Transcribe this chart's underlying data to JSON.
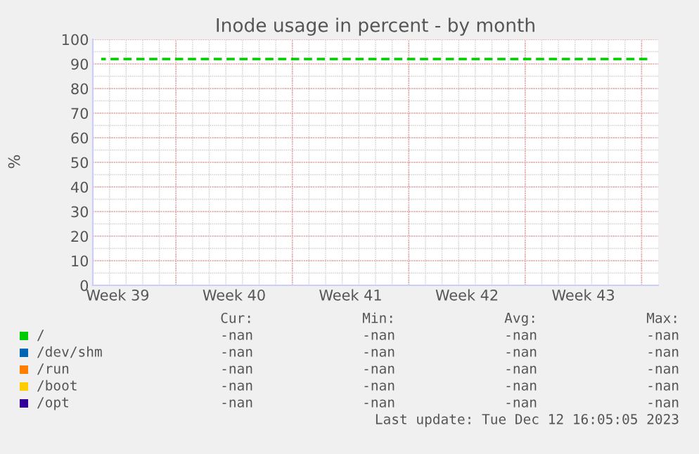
{
  "chart_data": {
    "type": "line",
    "title": "Inode usage in percent - by month",
    "ylabel": "%",
    "categories": [
      null,
      "Week 39",
      null,
      null,
      null,
      null,
      null,
      null,
      "Week 40",
      null,
      null,
      null,
      null,
      null,
      null,
      "Week 41",
      null,
      null,
      null,
      null,
      null,
      null,
      "Week 42",
      null,
      null,
      null,
      null,
      null,
      null,
      "Week 43",
      null,
      null,
      null,
      null
    ],
    "ylim": [
      0,
      100
    ],
    "yticks": [
      0,
      10,
      20,
      30,
      40,
      50,
      60,
      70,
      80,
      90,
      100
    ],
    "grid": true,
    "legend": "bottom",
    "series": [
      {
        "name": "/",
        "color": "#00cc00",
        "line_style": "dashed",
        "values": [
          92,
          92,
          92,
          92,
          92,
          92,
          92,
          92,
          92,
          92,
          92,
          92,
          92,
          92,
          92,
          92,
          92,
          92,
          92,
          92,
          92,
          92,
          92,
          92,
          92,
          92,
          92,
          92,
          92,
          92,
          92,
          92,
          92,
          92
        ]
      },
      {
        "name": "/dev/shm",
        "color": "#0066b3",
        "values": [
          null,
          null,
          null,
          null,
          null,
          null,
          null,
          null,
          null,
          null,
          null,
          null,
          null,
          null,
          null,
          null,
          null,
          null,
          null,
          null,
          null,
          null,
          null,
          null,
          null,
          null,
          null,
          null,
          null,
          null,
          null,
          null,
          null,
          null
        ]
      },
      {
        "name": "/run",
        "color": "#ff8000",
        "values": [
          null,
          null,
          null,
          null,
          null,
          null,
          null,
          null,
          null,
          null,
          null,
          null,
          null,
          null,
          null,
          null,
          null,
          null,
          null,
          null,
          null,
          null,
          null,
          null,
          null,
          null,
          null,
          null,
          null,
          null,
          null,
          null,
          null,
          null
        ]
      },
      {
        "name": "/boot",
        "color": "#ffcc00",
        "values": [
          null,
          null,
          null,
          null,
          null,
          null,
          null,
          null,
          null,
          null,
          null,
          null,
          null,
          null,
          null,
          null,
          null,
          null,
          null,
          null,
          null,
          null,
          null,
          null,
          null,
          null,
          null,
          null,
          null,
          null,
          null,
          null,
          null,
          null
        ]
      },
      {
        "name": "/opt",
        "color": "#330099",
        "values": [
          null,
          null,
          null,
          null,
          null,
          null,
          null,
          null,
          null,
          null,
          null,
          null,
          null,
          null,
          null,
          null,
          null,
          null,
          null,
          null,
          null,
          null,
          null,
          null,
          null,
          null,
          null,
          null,
          null,
          null,
          null,
          null,
          null,
          null
        ]
      }
    ],
    "annotations": [
      "Cur:",
      "Min:",
      "Avg:",
      "Max:",
      "-nan",
      "-nan",
      "-nan",
      "-nan",
      "-nan",
      "-nan",
      "-nan",
      "-nan",
      "-nan",
      "-nan",
      "-nan",
      "-nan",
      "-nan",
      "-nan",
      "-nan",
      "-nan",
      "-nan",
      "-nan",
      "-nan",
      "-nan",
      "Last update: Tue Dec 12 16:05:05 2023"
    ]
  }
}
